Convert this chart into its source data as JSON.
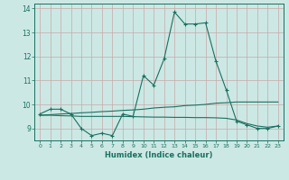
{
  "xlabel": "Humidex (Indice chaleur)",
  "background_color": "#cce8e4",
  "grid_color": "#c8a8a8",
  "line_color": "#1a7060",
  "x_values": [
    0,
    1,
    2,
    3,
    4,
    5,
    6,
    7,
    8,
    9,
    10,
    11,
    12,
    13,
    14,
    15,
    16,
    17,
    18,
    19,
    20,
    21,
    22,
    23
  ],
  "line1_y": [
    9.6,
    9.8,
    9.8,
    9.6,
    9.0,
    8.7,
    8.8,
    8.7,
    9.6,
    9.5,
    11.2,
    10.8,
    11.9,
    13.85,
    13.35,
    13.35,
    13.4,
    11.8,
    10.6,
    9.3,
    9.15,
    9.0,
    9.0,
    9.1
  ],
  "line2_y": [
    9.55,
    9.57,
    9.6,
    9.62,
    9.65,
    9.67,
    9.7,
    9.72,
    9.75,
    9.77,
    9.8,
    9.85,
    9.88,
    9.9,
    9.95,
    9.97,
    10.0,
    10.05,
    10.07,
    10.1,
    10.1,
    10.1,
    10.1,
    10.1
  ],
  "line3_y": [
    9.55,
    9.55,
    9.53,
    9.52,
    9.5,
    9.5,
    9.5,
    9.5,
    9.5,
    9.49,
    9.48,
    9.47,
    9.47,
    9.46,
    9.46,
    9.45,
    9.45,
    9.44,
    9.42,
    9.35,
    9.2,
    9.1,
    9.05,
    9.1
  ],
  "ylim": [
    8.5,
    14.2
  ],
  "xlim": [
    -0.5,
    23.5
  ],
  "yticks": [
    9,
    10,
    11,
    12,
    13,
    14
  ],
  "xticks": [
    0,
    1,
    2,
    3,
    4,
    5,
    6,
    7,
    8,
    9,
    10,
    11,
    12,
    13,
    14,
    15,
    16,
    17,
    18,
    19,
    20,
    21,
    22,
    23
  ]
}
